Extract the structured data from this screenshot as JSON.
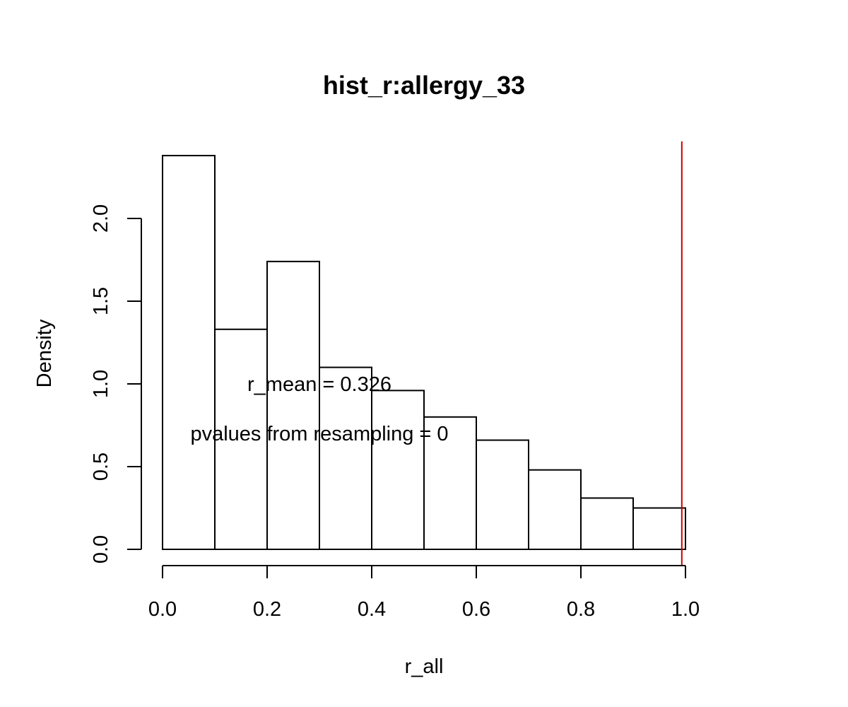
{
  "chart_data": {
    "type": "bar",
    "title": "hist_r:allergy_33",
    "xlabel": "r_all",
    "ylabel": "Density",
    "bin_edges": [
      0.0,
      0.1,
      0.2,
      0.3,
      0.4,
      0.5,
      0.6,
      0.7,
      0.8,
      0.9,
      1.0
    ],
    "values": [
      2.38,
      1.33,
      1.74,
      1.1,
      0.96,
      0.8,
      0.66,
      0.48,
      0.31,
      0.25
    ],
    "xlim": [
      0.0,
      1.0
    ],
    "ylim": [
      0.0,
      2.38
    ],
    "x_ticks": [
      0.0,
      0.2,
      0.4,
      0.6,
      0.8,
      1.0
    ],
    "x_tick_labels": [
      "0.0",
      "0.2",
      "0.4",
      "0.6",
      "0.8",
      "1.0"
    ],
    "y_ticks": [
      0.0,
      0.5,
      1.0,
      1.5,
      2.0
    ],
    "y_tick_labels": [
      "0.0",
      "0.5",
      "1.0",
      "1.5",
      "2.0"
    ],
    "grid": false,
    "reference_line": {
      "x": 0.993,
      "color": "#cc0000"
    },
    "annotations": [
      {
        "text": "r_mean = 0.326",
        "x": 0.3,
        "y": 1.0
      },
      {
        "text": "pvalues from resampling = 0",
        "x": 0.3,
        "y": 0.7
      }
    ],
    "bar_fill": "#ffffff",
    "bar_stroke": "#000000"
  }
}
